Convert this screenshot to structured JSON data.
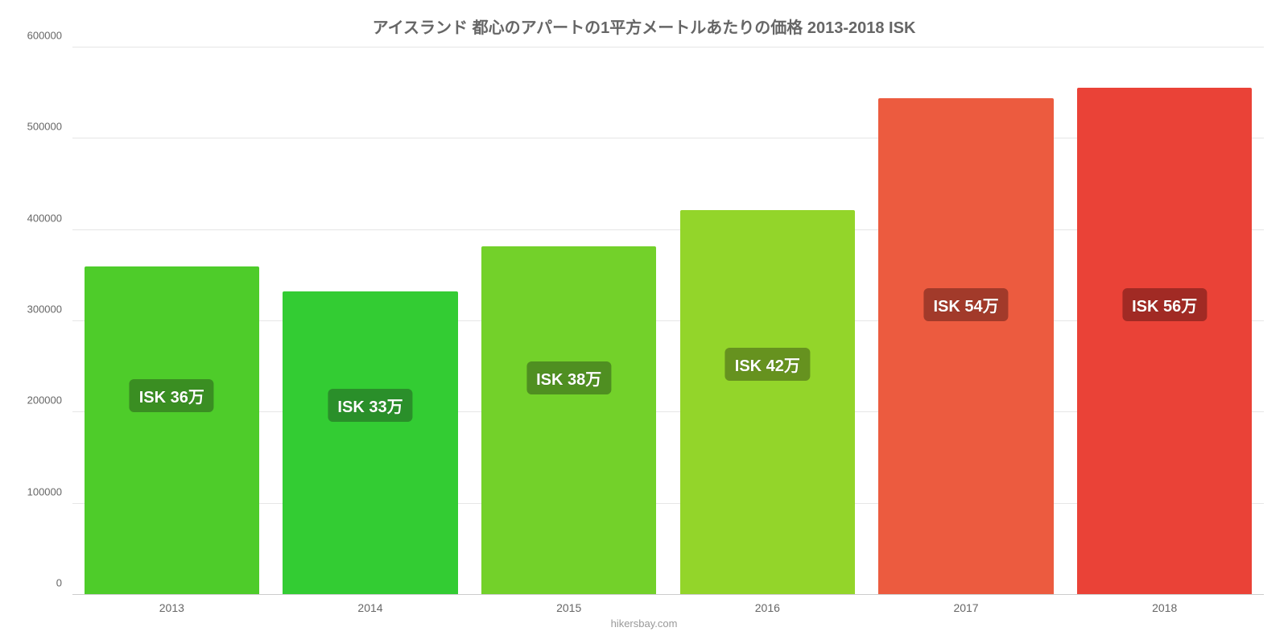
{
  "chart": {
    "type": "bar",
    "title": "アイスランド 都心のアパートの1平方メートルあたりの価格 2013-2018 ISK",
    "title_fontsize": 20,
    "title_color": "#666666",
    "background_color": "#ffffff",
    "grid_color": "#e6e6e6",
    "baseline_color": "#cccccc",
    "axis_label_color": "#666666",
    "axis_label_fontsize": 13,
    "y": {
      "min": 0,
      "max": 600000,
      "tick_step": 100000,
      "ticks": [
        "0",
        "100000",
        "200000",
        "300000",
        "400000",
        "500000",
        "600000"
      ]
    },
    "categories": [
      "2013",
      "2014",
      "2015",
      "2016",
      "2017",
      "2018"
    ],
    "bars": [
      {
        "value": 360000,
        "color": "#4ecc2a",
        "label": "ISK 36万",
        "label_bg": "#3a8e22"
      },
      {
        "value": 333000,
        "color": "#33cc33",
        "label": "ISK 33万",
        "label_bg": "#2a8f2a"
      },
      {
        "value": 382000,
        "color": "#73d12a",
        "label": "ISK 38万",
        "label_bg": "#4f8f21"
      },
      {
        "value": 422000,
        "color": "#93d52a",
        "label": "ISK 42万",
        "label_bg": "#66921f"
      },
      {
        "value": 544000,
        "color": "#ec5b3f",
        "label": "ISK 54万",
        "label_bg": "#a23a2a"
      },
      {
        "value": 556000,
        "color": "#ea4237",
        "label": "ISK 56万",
        "label_bg": "#a12a24"
      }
    ],
    "bar_width_pct": 88,
    "bar_label_fontsize": 20,
    "bar_label_color": "#ffffff",
    "attribution": "hikersbay.com",
    "attribution_color": "#999999"
  }
}
